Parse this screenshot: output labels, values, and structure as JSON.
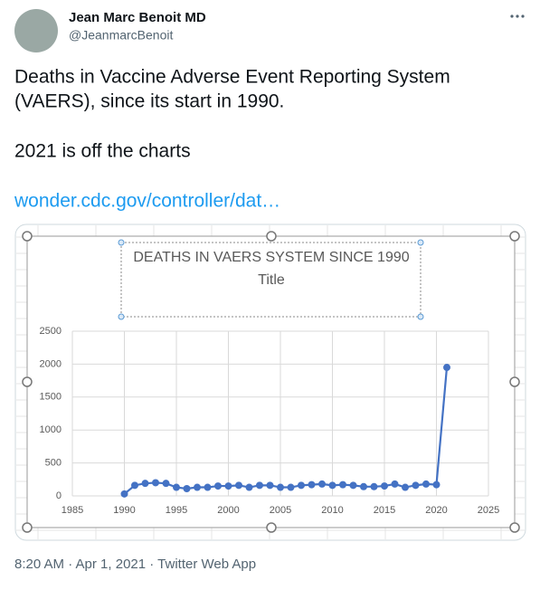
{
  "author": {
    "name": "Jean Marc Benoit MD",
    "handle": "@JeanmarcBenoit"
  },
  "text": [
    "Deaths in Vaccine Adverse Event Reporting System",
    "(VAERS), since its start in 1990.",
    "2021 is off the charts"
  ],
  "link": "wonder.cdc.gov/controller/dat…",
  "footer": "8:20 AM · Apr 1, 2021 · Twitter Web App",
  "chart_data": {
    "type": "line",
    "title": "DEATHS IN VAERS SYSTEM SINCE 1990",
    "subtitle": "Title",
    "x": [
      1990,
      1991,
      1992,
      1993,
      1994,
      1995,
      1996,
      1997,
      1998,
      1999,
      2000,
      2001,
      2002,
      2003,
      2004,
      2005,
      2006,
      2007,
      2008,
      2009,
      2010,
      2011,
      2012,
      2013,
      2014,
      2015,
      2016,
      2017,
      2018,
      2019,
      2020,
      2021
    ],
    "values": [
      30,
      160,
      190,
      200,
      190,
      130,
      110,
      130,
      130,
      150,
      150,
      160,
      130,
      160,
      160,
      130,
      130,
      160,
      170,
      180,
      160,
      170,
      160,
      140,
      140,
      150,
      180,
      130,
      160,
      180,
      170,
      1950
    ],
    "color": "#4472c4",
    "xlim": [
      1985,
      2025
    ],
    "xticks": [
      1985,
      1990,
      1995,
      2000,
      2005,
      2010,
      2015,
      2020,
      2025
    ],
    "ylim": [
      0,
      2500
    ],
    "yticks": [
      0,
      500,
      1000,
      1500,
      2000,
      2500
    ],
    "grid": true
  }
}
